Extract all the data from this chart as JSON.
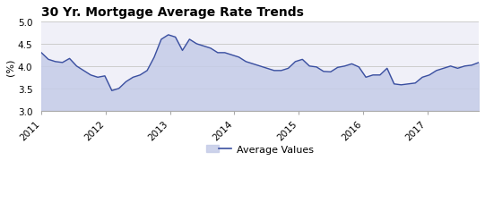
{
  "title": "30 Yr. Mortgage Average Rate Trends",
  "ylabel": "(%)",
  "ylim": [
    3.0,
    5.0
  ],
  "yticks": [
    3.0,
    3.5,
    4.0,
    4.5,
    5.0
  ],
  "line_color": "#3a4fa0",
  "fill_color": "#c5cce8",
  "fill_alpha": 0.85,
  "legend_label": "Average Values",
  "background_color": "#f0f0f8",
  "x_tick_labels": [
    "2011",
    "2012",
    "2013",
    "2014",
    "2015",
    "2016",
    "2017"
  ],
  "year_start": 2011,
  "year_end": 2017.8,
  "values": [
    4.3,
    4.15,
    4.1,
    4.08,
    4.17,
    4.0,
    3.9,
    3.8,
    3.75,
    3.78,
    3.45,
    3.5,
    3.65,
    3.75,
    3.8,
    3.9,
    4.2,
    4.6,
    4.7,
    4.65,
    4.35,
    4.6,
    4.5,
    4.45,
    4.4,
    4.3,
    4.3,
    4.25,
    4.2,
    4.1,
    4.05,
    4.0,
    3.95,
    3.9,
    3.9,
    3.95,
    4.1,
    4.15,
    4.0,
    3.98,
    3.88,
    3.87,
    3.97,
    4.0,
    4.05,
    3.98,
    3.75,
    3.8,
    3.8,
    3.95,
    3.6,
    3.58,
    3.6,
    3.62,
    3.75,
    3.8,
    3.9,
    3.95,
    4.0,
    3.95,
    4.0,
    4.02,
    4.08
  ]
}
